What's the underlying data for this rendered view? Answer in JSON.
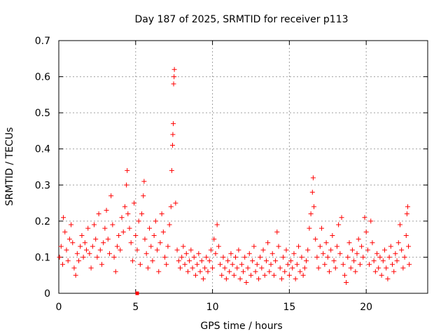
{
  "chart_data": {
    "type": "scatter",
    "title": "Day 187 of 2025, SRMTID for receiver p113",
    "xlabel": "GPS time / hours",
    "ylabel": "SRMTID / TECUs",
    "xlim": [
      0,
      24
    ],
    "ylim": [
      0,
      0.7
    ],
    "xticks": [
      0,
      5,
      10,
      15,
      20
    ],
    "xtick_labels": [
      "0",
      "5",
      "10",
      "15",
      "20"
    ],
    "yticks": [
      0,
      0.1,
      0.2,
      0.3,
      0.4,
      0.5,
      0.6,
      0.7
    ],
    "ytick_labels": [
      "0",
      "0.1",
      "0.2",
      "0.3",
      "0.4",
      "0.5",
      "0.6",
      "0.7"
    ],
    "grid": true,
    "marker": "+",
    "marker_color": "#ff0000",
    "series": [
      {
        "name": "SRMTID",
        "points": [
          [
            0.05,
            0.1
          ],
          [
            0.15,
            0.13
          ],
          [
            0.25,
            0.08
          ],
          [
            0.3,
            0.21
          ],
          [
            0.4,
            0.17
          ],
          [
            0.5,
            0.12
          ],
          [
            0.6,
            0.09
          ],
          [
            0.7,
            0.15
          ],
          [
            0.8,
            0.19
          ],
          [
            0.9,
            0.14
          ],
          [
            1.0,
            0.07
          ],
          [
            1.1,
            0.05
          ],
          [
            1.2,
            0.11
          ],
          [
            1.3,
            0.09
          ],
          [
            1.4,
            0.13
          ],
          [
            1.5,
            0.16
          ],
          [
            1.6,
            0.1
          ],
          [
            1.7,
            0.14
          ],
          [
            1.8,
            0.12
          ],
          [
            1.9,
            0.18
          ],
          [
            2.0,
            0.11
          ],
          [
            2.1,
            0.07
          ],
          [
            2.2,
            0.13
          ],
          [
            2.3,
            0.19
          ],
          [
            2.4,
            0.15
          ],
          [
            2.5,
            0.1
          ],
          [
            2.6,
            0.22
          ],
          [
            2.7,
            0.12
          ],
          [
            2.8,
            0.08
          ],
          [
            2.9,
            0.14
          ],
          [
            3.0,
            0.18
          ],
          [
            3.1,
            0.23
          ],
          [
            3.2,
            0.15
          ],
          [
            3.3,
            0.11
          ],
          [
            3.4,
            0.27
          ],
          [
            3.5,
            0.19
          ],
          [
            3.6,
            0.1
          ],
          [
            3.7,
            0.06
          ],
          [
            3.8,
            0.13
          ],
          [
            3.9,
            0.16
          ],
          [
            4.0,
            0.12
          ],
          [
            4.1,
            0.21
          ],
          [
            4.2,
            0.17
          ],
          [
            4.3,
            0.24
          ],
          [
            4.4,
            0.3
          ],
          [
            4.45,
            0.34
          ],
          [
            4.5,
            0.22
          ],
          [
            4.6,
            0.18
          ],
          [
            4.7,
            0.14
          ],
          [
            4.8,
            0.09
          ],
          [
            4.9,
            0.25
          ],
          [
            5.0,
            0.16
          ],
          [
            5.1,
            0.12
          ],
          [
            5.2,
            0.2
          ],
          [
            5.3,
            0.08
          ],
          [
            5.4,
            0.22
          ],
          [
            5.5,
            0.27
          ],
          [
            5.55,
            0.31
          ],
          [
            5.6,
            0.15
          ],
          [
            5.7,
            0.11
          ],
          [
            5.8,
            0.07
          ],
          [
            5.9,
            0.18
          ],
          [
            6.0,
            0.13
          ],
          [
            6.1,
            0.09
          ],
          [
            6.2,
            0.16
          ],
          [
            6.3,
            0.2
          ],
          [
            6.4,
            0.12
          ],
          [
            6.5,
            0.06
          ],
          [
            6.6,
            0.14
          ],
          [
            6.7,
            0.22
          ],
          [
            6.8,
            0.17
          ],
          [
            6.9,
            0.1
          ],
          [
            7.0,
            0.08
          ],
          [
            7.1,
            0.13
          ],
          [
            7.2,
            0.19
          ],
          [
            7.3,
            0.24
          ],
          [
            7.35,
            0.34
          ],
          [
            7.4,
            0.41
          ],
          [
            7.42,
            0.44
          ],
          [
            7.45,
            0.47
          ],
          [
            7.47,
            0.58
          ],
          [
            7.5,
            0.6
          ],
          [
            7.52,
            0.62
          ],
          [
            7.6,
            0.25
          ],
          [
            7.7,
            0.12
          ],
          [
            7.8,
            0.09
          ],
          [
            7.9,
            0.07
          ],
          [
            8.0,
            0.1
          ],
          [
            8.1,
            0.13
          ],
          [
            8.2,
            0.08
          ],
          [
            8.3,
            0.11
          ],
          [
            8.4,
            0.06
          ],
          [
            8.5,
            0.09
          ],
          [
            8.6,
            0.12
          ],
          [
            8.7,
            0.07
          ],
          [
            8.8,
            0.1
          ],
          [
            8.9,
            0.05
          ],
          [
            9.0,
            0.08
          ],
          [
            9.1,
            0.11
          ],
          [
            9.2,
            0.06
          ],
          [
            9.3,
            0.09
          ],
          [
            9.4,
            0.04
          ],
          [
            9.5,
            0.07
          ],
          [
            9.6,
            0.1
          ],
          [
            9.7,
            0.06
          ],
          [
            9.8,
            0.09
          ],
          [
            9.9,
            0.12
          ],
          [
            10.0,
            0.07
          ],
          [
            10.1,
            0.15
          ],
          [
            10.2,
            0.11
          ],
          [
            10.3,
            0.19
          ],
          [
            10.4,
            0.13
          ],
          [
            10.5,
            0.08
          ],
          [
            10.6,
            0.05
          ],
          [
            10.7,
            0.1
          ],
          [
            10.8,
            0.07
          ],
          [
            10.9,
            0.04
          ],
          [
            11.0,
            0.09
          ],
          [
            11.1,
            0.06
          ],
          [
            11.2,
            0.11
          ],
          [
            11.3,
            0.08
          ],
          [
            11.4,
            0.05
          ],
          [
            11.5,
            0.1
          ],
          [
            11.6,
            0.07
          ],
          [
            11.7,
            0.12
          ],
          [
            11.8,
            0.04
          ],
          [
            11.9,
            0.08
          ],
          [
            12.0,
            0.06
          ],
          [
            12.1,
            0.1
          ],
          [
            12.2,
            0.03
          ],
          [
            12.3,
            0.07
          ],
          [
            12.4,
            0.11
          ],
          [
            12.5,
            0.05
          ],
          [
            12.6,
            0.09
          ],
          [
            12.7,
            0.13
          ],
          [
            12.8,
            0.06
          ],
          [
            12.9,
            0.08
          ],
          [
            13.0,
            0.04
          ],
          [
            13.1,
            0.1
          ],
          [
            13.2,
            0.07
          ],
          [
            13.3,
            0.12
          ],
          [
            13.4,
            0.05
          ],
          [
            13.5,
            0.09
          ],
          [
            13.6,
            0.14
          ],
          [
            13.7,
            0.06
          ],
          [
            13.8,
            0.08
          ],
          [
            13.9,
            0.11
          ],
          [
            14.0,
            0.05
          ],
          [
            14.1,
            0.09
          ],
          [
            14.2,
            0.17
          ],
          [
            14.3,
            0.13
          ],
          [
            14.4,
            0.07
          ],
          [
            14.5,
            0.04
          ],
          [
            14.6,
            0.1
          ],
          [
            14.7,
            0.06
          ],
          [
            14.8,
            0.12
          ],
          [
            14.9,
            0.08
          ],
          [
            15.0,
            0.05
          ],
          [
            15.1,
            0.09
          ],
          [
            15.2,
            0.07
          ],
          [
            15.3,
            0.11
          ],
          [
            15.4,
            0.04
          ],
          [
            15.5,
            0.08
          ],
          [
            15.6,
            0.13
          ],
          [
            15.7,
            0.06
          ],
          [
            15.8,
            0.1
          ],
          [
            15.9,
            0.05
          ],
          [
            16.0,
            0.07
          ],
          [
            16.1,
            0.09
          ],
          [
            16.2,
            0.12
          ],
          [
            16.3,
            0.18
          ],
          [
            16.4,
            0.22
          ],
          [
            16.5,
            0.28
          ],
          [
            16.55,
            0.32
          ],
          [
            16.6,
            0.24
          ],
          [
            16.7,
            0.15
          ],
          [
            16.8,
            0.1
          ],
          [
            16.9,
            0.07
          ],
          [
            17.0,
            0.13
          ],
          [
            17.1,
            0.18
          ],
          [
            17.2,
            0.11
          ],
          [
            17.3,
            0.08
          ],
          [
            17.4,
            0.14
          ],
          [
            17.5,
            0.1
          ],
          [
            17.6,
            0.06
          ],
          [
            17.7,
            0.12
          ],
          [
            17.8,
            0.16
          ],
          [
            17.9,
            0.09
          ],
          [
            18.0,
            0.07
          ],
          [
            18.1,
            0.13
          ],
          [
            18.2,
            0.19
          ],
          [
            18.3,
            0.11
          ],
          [
            18.4,
            0.21
          ],
          [
            18.5,
            0.08
          ],
          [
            18.6,
            0.05
          ],
          [
            18.7,
            0.03
          ],
          [
            18.8,
            0.1
          ],
          [
            18.9,
            0.14
          ],
          [
            19.0,
            0.07
          ],
          [
            19.1,
            0.12
          ],
          [
            19.2,
            0.09
          ],
          [
            19.3,
            0.06
          ],
          [
            19.4,
            0.11
          ],
          [
            19.5,
            0.15
          ],
          [
            19.6,
            0.08
          ],
          [
            19.7,
            0.13
          ],
          [
            19.8,
            0.1
          ],
          [
            19.9,
            0.21
          ],
          [
            20.0,
            0.17
          ],
          [
            20.1,
            0.12
          ],
          [
            20.2,
            0.08
          ],
          [
            20.3,
            0.2
          ],
          [
            20.4,
            0.14
          ],
          [
            20.5,
            0.09
          ],
          [
            20.6,
            0.06
          ],
          [
            20.7,
            0.11
          ],
          [
            20.8,
            0.07
          ],
          [
            20.9,
            0.1
          ],
          [
            21.0,
            0.05
          ],
          [
            21.1,
            0.09
          ],
          [
            21.2,
            0.12
          ],
          [
            21.3,
            0.07
          ],
          [
            21.4,
            0.04
          ],
          [
            21.5,
            0.1
          ],
          [
            21.6,
            0.13
          ],
          [
            21.7,
            0.08
          ],
          [
            21.8,
            0.06
          ],
          [
            21.9,
            0.11
          ],
          [
            22.0,
            0.09
          ],
          [
            22.1,
            0.14
          ],
          [
            22.2,
            0.19
          ],
          [
            22.3,
            0.12
          ],
          [
            22.4,
            0.07
          ],
          [
            22.5,
            0.1
          ],
          [
            22.6,
            0.16
          ],
          [
            22.65,
            0.22
          ],
          [
            22.7,
            0.24
          ],
          [
            22.75,
            0.13
          ],
          [
            22.8,
            0.08
          ]
        ]
      }
    ],
    "special_marker": {
      "x": 5.1,
      "y": 0.0,
      "shape": "square"
    }
  }
}
